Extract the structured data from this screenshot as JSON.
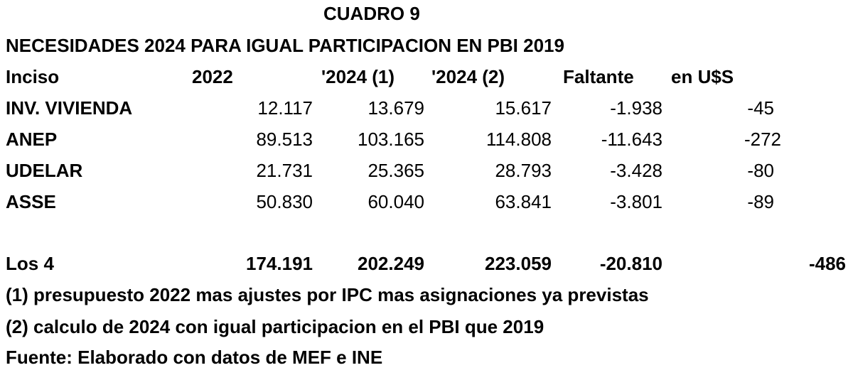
{
  "title": "CUADRO 9",
  "subtitle": "NECESIDADES 2024 PARA IGUAL PARTICIPACION EN PBI 2019",
  "headers": [
    "Inciso",
    "2022",
    "'2024 (1)",
    "'2024 (2)",
    "Faltante",
    "en U$S"
  ],
  "rows": [
    {
      "inciso": "INV. VIVIENDA",
      "v2022": "12.117",
      "v2024a": "13.679",
      "v2024b": "15.617",
      "faltante": "-1.938",
      "usd": "-45"
    },
    {
      "inciso": "ANEP",
      "v2022": "89.513",
      "v2024a": "103.165",
      "v2024b": "114.808",
      "faltante": "-11.643",
      "usd": "-272"
    },
    {
      "inciso": "UDELAR",
      "v2022": "21.731",
      "v2024a": "25.365",
      "v2024b": "28.793",
      "faltante": "-3.428",
      "usd": "-80"
    },
    {
      "inciso": "ASSE",
      "v2022": "50.830",
      "v2024a": "60.040",
      "v2024b": "63.841",
      "faltante": "-3.801",
      "usd": "-89"
    }
  ],
  "total": {
    "inciso": "Los 4",
    "v2022": "174.191",
    "v2024a": "202.249",
    "v2024b": "223.059",
    "faltante": "-20.810",
    "usd": "-486"
  },
  "notes": [
    "(1) presupuesto 2022 mas ajustes por IPC mas asignaciones ya previstas",
    "(2) calculo de 2024 con igual participacion en el PBI que 2019",
    "Fuente: Elaborado con datos de MEF e INE"
  ]
}
